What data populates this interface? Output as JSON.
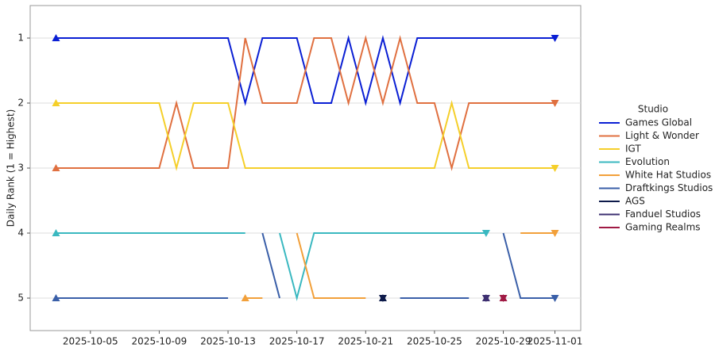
{
  "chart_data": {
    "type": "line",
    "y_label": "Daily Rank (1 = Highest)",
    "legend_title": "Studio",
    "x": [
      "2025-10-03",
      "2025-10-04",
      "2025-10-05",
      "2025-10-06",
      "2025-10-07",
      "2025-10-08",
      "2025-10-09",
      "2025-10-10",
      "2025-10-11",
      "2025-10-12",
      "2025-10-13",
      "2025-10-14",
      "2025-10-15",
      "2025-10-16",
      "2025-10-17",
      "2025-10-18",
      "2025-10-19",
      "2025-10-20",
      "2025-10-21",
      "2025-10-22",
      "2025-10-23",
      "2025-10-24",
      "2025-10-25",
      "2025-10-26",
      "2025-10-27",
      "2025-10-28",
      "2025-10-29",
      "2025-10-30",
      "2025-10-31",
      "2025-11-01"
    ],
    "xlim": [
      "2025-10-01T12:00Z",
      "2025-11-02T12:00Z"
    ],
    "xticks": [
      "2025-10-05",
      "2025-10-09",
      "2025-10-13",
      "2025-10-17",
      "2025-10-21",
      "2025-10-25",
      "2025-10-29",
      "2025-11-01"
    ],
    "ylim": [
      5.5,
      0.5
    ],
    "yticks": [
      1,
      2,
      3,
      4,
      5
    ],
    "grid": true,
    "legend_position": "right",
    "series": [
      {
        "name": "Games Global",
        "color": "#0a1fd4",
        "values": [
          1,
          1,
          1,
          1,
          1,
          1,
          1,
          1,
          1,
          1,
          1,
          2,
          1,
          1,
          1,
          2,
          2,
          1,
          2,
          1,
          2,
          1,
          1,
          1,
          1,
          1,
          1,
          1,
          1,
          1
        ]
      },
      {
        "name": "Light & Wonder",
        "color": "#e07040",
        "values": [
          3,
          3,
          3,
          3,
          3,
          3,
          3,
          2,
          3,
          3,
          3,
          1,
          2,
          2,
          2,
          1,
          1,
          2,
          1,
          2,
          1,
          2,
          2,
          3,
          2,
          2,
          2,
          2,
          2,
          2
        ]
      },
      {
        "name": "IGT",
        "color": "#f5cf2a",
        "values": [
          2,
          2,
          2,
          2,
          2,
          2,
          2,
          3,
          2,
          2,
          2,
          3,
          3,
          3,
          3,
          3,
          3,
          3,
          3,
          3,
          3,
          3,
          3,
          2,
          3,
          3,
          3,
          3,
          3,
          3
        ]
      },
      {
        "name": "Evolution",
        "color": "#3ab8c0",
        "values": [
          4,
          4,
          4,
          4,
          4,
          4,
          4,
          4,
          4,
          4,
          4,
          4,
          null,
          4,
          5,
          4,
          4,
          4,
          4,
          4,
          4,
          4,
          4,
          4,
          4,
          4,
          null,
          null,
          null,
          null
        ]
      },
      {
        "name": "White Hat Studios",
        "color": "#f2a03a",
        "values": [
          null,
          null,
          null,
          null,
          null,
          null,
          null,
          null,
          null,
          null,
          null,
          5,
          5,
          null,
          4,
          5,
          5,
          5,
          5,
          null,
          null,
          null,
          null,
          null,
          null,
          null,
          null,
          4,
          4,
          4
        ]
      },
      {
        "name": "Draftkings Studios",
        "color": "#3a5fa8",
        "values": [
          5,
          5,
          5,
          5,
          5,
          5,
          5,
          5,
          5,
          5,
          5,
          null,
          4,
          5,
          null,
          null,
          null,
          null,
          null,
          null,
          5,
          5,
          5,
          5,
          5,
          null,
          4,
          5,
          5,
          5
        ]
      },
      {
        "name": "AGS",
        "color": "#0d1a4a",
        "values": [
          null,
          null,
          null,
          null,
          null,
          null,
          null,
          null,
          null,
          null,
          null,
          null,
          null,
          null,
          null,
          null,
          null,
          null,
          null,
          5,
          null,
          null,
          null,
          null,
          null,
          null,
          null,
          null,
          null,
          null
        ]
      },
      {
        "name": "Fanduel Studios",
        "color": "#3d2f70",
        "values": [
          null,
          null,
          null,
          null,
          null,
          null,
          null,
          null,
          null,
          null,
          null,
          null,
          null,
          null,
          null,
          null,
          null,
          null,
          null,
          null,
          null,
          null,
          null,
          null,
          null,
          5,
          null,
          null,
          null,
          null
        ]
      },
      {
        "name": "Gaming Realms",
        "color": "#a01a44",
        "values": [
          null,
          null,
          null,
          null,
          null,
          null,
          null,
          null,
          null,
          null,
          null,
          null,
          null,
          null,
          null,
          null,
          null,
          null,
          null,
          null,
          null,
          null,
          null,
          null,
          null,
          null,
          5,
          null,
          null,
          null
        ]
      }
    ]
  }
}
